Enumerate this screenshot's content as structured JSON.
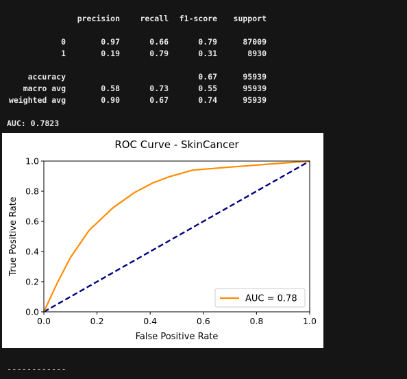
{
  "report": {
    "headers": [
      "precision",
      "recall",
      "f1-score",
      "support"
    ],
    "rows": [
      {
        "label": "0",
        "precision": "0.97",
        "recall": "0.66",
        "f1": "0.79",
        "support": "87009"
      },
      {
        "label": "1",
        "precision": "0.19",
        "recall": "0.79",
        "f1": "0.31",
        "support": "8930"
      },
      {
        "label": "accuracy",
        "precision": "",
        "recall": "",
        "f1": "0.67",
        "support": "95939"
      },
      {
        "label": "macro avg",
        "precision": "0.58",
        "recall": "0.73",
        "f1": "0.55",
        "support": "95939"
      },
      {
        "label": "weighted avg",
        "precision": "0.90",
        "recall": "0.67",
        "f1": "0.74",
        "support": "95939"
      }
    ],
    "auc_line": "AUC: 0.7823"
  },
  "separator": "------------",
  "chart_data": {
    "type": "line",
    "title": "ROC Curve - SkinCancer",
    "xlabel": "False Positive Rate",
    "ylabel": "True Positive Rate",
    "xlim": [
      0.0,
      1.0
    ],
    "ylim": [
      0.0,
      1.0
    ],
    "x_ticks": [
      "0.0",
      "0.2",
      "0.4",
      "0.6",
      "0.8",
      "1.0"
    ],
    "y_ticks": [
      "0.0",
      "0.2",
      "0.4",
      "0.6",
      "0.8",
      "1.0"
    ],
    "grid": false,
    "legend_position": "lower right",
    "series": [
      {
        "name": "AUC = 0.78",
        "color": "#ff8c00",
        "style": "solid",
        "x": [
          0.0,
          0.05,
          0.1,
          0.17,
          0.26,
          0.34,
          0.41,
          0.47,
          0.56,
          0.7,
          0.85,
          1.0
        ],
        "y": [
          0.0,
          0.19,
          0.36,
          0.54,
          0.69,
          0.79,
          0.855,
          0.895,
          0.94,
          0.96,
          0.98,
          1.0
        ]
      },
      {
        "name": "",
        "color": "#000080",
        "style": "dashed",
        "x": [
          0.0,
          1.0
        ],
        "y": [
          0.0,
          1.0
        ]
      }
    ]
  }
}
